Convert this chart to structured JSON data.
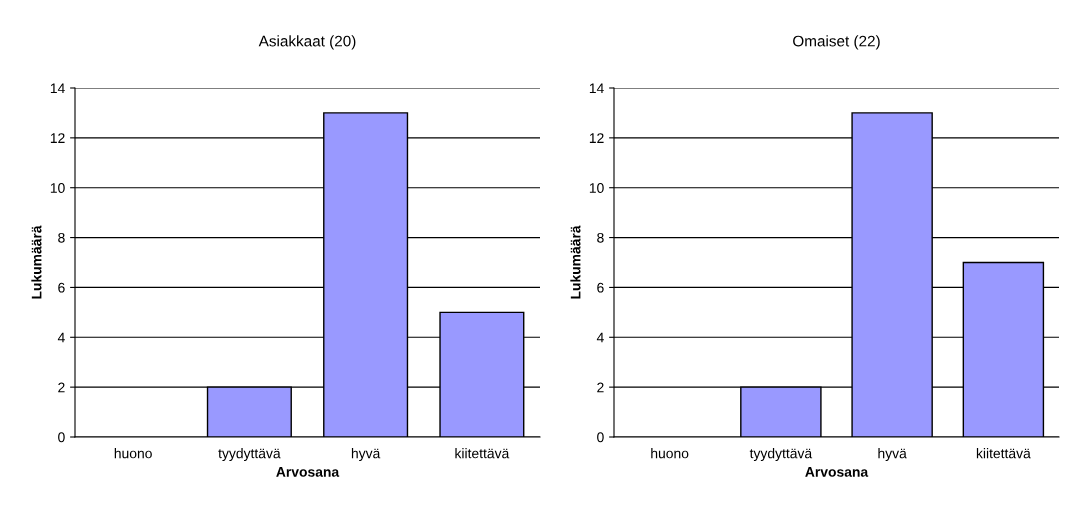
{
  "chart_data": [
    {
      "type": "bar",
      "title": "Asiakkaat (20)",
      "xlabel": "Arvosana",
      "ylabel": "Lukumäärä",
      "categories": [
        "huono",
        "tyydyttävä",
        "hyvä",
        "kiitettävä"
      ],
      "values": [
        0,
        2,
        13,
        5
      ],
      "color": "#9999ff",
      "ylim": [
        0,
        14
      ],
      "yticks": [
        0,
        2,
        4,
        6,
        8,
        10,
        12,
        14
      ],
      "grid": "y"
    },
    {
      "type": "bar",
      "title": "Omaiset (22)",
      "xlabel": "Arvosana",
      "ylabel": "Lukumäärä",
      "categories": [
        "huono",
        "tyydyttävä",
        "hyvä",
        "kiitettävä"
      ],
      "values": [
        0,
        2,
        13,
        7
      ],
      "color": "#9999ff",
      "ylim": [
        0,
        14
      ],
      "yticks": [
        0,
        2,
        4,
        6,
        8,
        10,
        12,
        14
      ],
      "grid": "y"
    }
  ]
}
